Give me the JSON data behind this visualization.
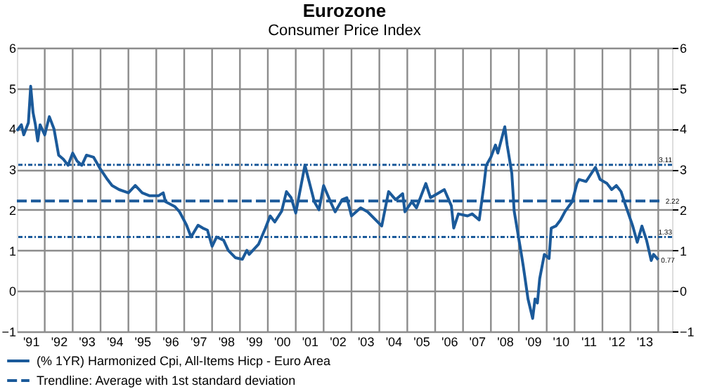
{
  "chart_data": {
    "type": "line",
    "title": "Eurozone",
    "subtitle": "Consumer Price Index",
    "xlim": [
      "1991-01",
      "2014-07"
    ],
    "xticks": [
      {
        "value": "1991-07",
        "label": "'91"
      },
      {
        "value": "1992-07",
        "label": "'92"
      },
      {
        "value": "1993-07",
        "label": "'93"
      },
      {
        "value": "1994-07",
        "label": "'94"
      },
      {
        "value": "1995-07",
        "label": "'95"
      },
      {
        "value": "1996-07",
        "label": "'96"
      },
      {
        "value": "1997-07",
        "label": "'97"
      },
      {
        "value": "1998-07",
        "label": "'98"
      },
      {
        "value": "1999-07",
        "label": "'99"
      },
      {
        "value": "2000-07",
        "label": "'00"
      },
      {
        "value": "2001-07",
        "label": "'01"
      },
      {
        "value": "2002-07",
        "label": "'02"
      },
      {
        "value": "2003-07",
        "label": "'03"
      },
      {
        "value": "2004-07",
        "label": "'04"
      },
      {
        "value": "2005-07",
        "label": "'05"
      },
      {
        "value": "2006-07",
        "label": "'06"
      },
      {
        "value": "2007-07",
        "label": "'07"
      },
      {
        "value": "2008-07",
        "label": "'08"
      },
      {
        "value": "2009-07",
        "label": "'09"
      },
      {
        "value": "2010-07",
        "label": "'10"
      },
      {
        "value": "2011-07",
        "label": "'11"
      },
      {
        "value": "2012-07",
        "label": "'12"
      },
      {
        "value": "2013-07",
        "label": "'13"
      },
      {
        "value": "1992-01",
        "label": null
      },
      {
        "value": "1993-01",
        "label": null
      },
      {
        "value": "1994-01",
        "label": null
      },
      {
        "value": "1995-01",
        "label": null
      },
      {
        "value": "1996-01",
        "label": null
      },
      {
        "value": "1997-01",
        "label": null
      },
      {
        "value": "1998-01",
        "label": null
      },
      {
        "value": "1999-01",
        "label": null
      },
      {
        "value": "2000-01",
        "label": null
      },
      {
        "value": "2001-01",
        "label": null
      },
      {
        "value": "2002-01",
        "label": null
      },
      {
        "value": "2003-01",
        "label": null
      },
      {
        "value": "2004-01",
        "label": null
      },
      {
        "value": "2005-01",
        "label": null
      },
      {
        "value": "2006-01",
        "label": null
      },
      {
        "value": "2007-01",
        "label": null
      },
      {
        "value": "2008-01",
        "label": null
      },
      {
        "value": "2009-01",
        "label": null
      },
      {
        "value": "2010-01",
        "label": null
      },
      {
        "value": "2011-01",
        "label": null
      },
      {
        "value": "2012-01",
        "label": null
      },
      {
        "value": "2013-01",
        "label": null
      },
      {
        "value": "2014-01",
        "label": null
      }
    ],
    "ylim": [
      -1,
      6
    ],
    "yticks": [
      -1,
      0,
      1,
      2,
      3,
      4,
      5,
      6
    ],
    "y2lim": [
      -1,
      6
    ],
    "y2ticks": [
      -1,
      0,
      1,
      2,
      3,
      4,
      5,
      6
    ],
    "grid": true,
    "legend": "bottom",
    "series": [
      {
        "name": "(% 1YR) Harmonized Cpi, All-Items Hicp - Euro Area",
        "color": "#1b5a9a",
        "line_style": "solid",
        "x": [
          "1991-01",
          "1991-03",
          "1991-04",
          "1991-06",
          "1991-07",
          "1991-08",
          "1991-09",
          "1991-10",
          "1991-11",
          "1992-01",
          "1992-03",
          "1992-05",
          "1992-07",
          "1992-09",
          "1992-11",
          "1993-01",
          "1993-03",
          "1993-05",
          "1993-07",
          "1993-10",
          "1994-01",
          "1994-04",
          "1994-06",
          "1994-09",
          "1995-01",
          "1995-04",
          "1995-07",
          "1995-10",
          "1996-02",
          "1996-04",
          "1996-05",
          "1996-09",
          "1996-11",
          "1997-02",
          "1997-04",
          "1997-07",
          "1997-09",
          "1997-11",
          "1998-01",
          "1998-03",
          "1998-06",
          "1998-08",
          "1998-11",
          "1999-02",
          "1999-04",
          "1999-05",
          "1999-09",
          "1999-12",
          "2000-02",
          "2000-04",
          "2000-07",
          "2000-09",
          "2000-11",
          "2001-01",
          "2001-05",
          "2001-09",
          "2001-11",
          "2002-01",
          "2002-04",
          "2002-06",
          "2002-09",
          "2002-11",
          "2003-01",
          "2003-05",
          "2003-08",
          "2004-02",
          "2004-05",
          "2004-08",
          "2004-11",
          "2004-12",
          "2005-03",
          "2005-05",
          "2005-09",
          "2005-11",
          "2006-02",
          "2006-05",
          "2006-08",
          "2006-09",
          "2006-11",
          "2007-03",
          "2007-05",
          "2007-08",
          "2007-10",
          "2007-11",
          "2008-01",
          "2008-03",
          "2008-04",
          "2008-07",
          "2008-08",
          "2008-10",
          "2008-11",
          "2009-02",
          "2009-03",
          "2009-05",
          "2009-07",
          "2009-08",
          "2009-09",
          "2009-10",
          "2009-12",
          "2010-02",
          "2010-03",
          "2010-05",
          "2010-07",
          "2010-09",
          "2010-12",
          "2011-02",
          "2011-03",
          "2011-06",
          "2011-10",
          "2011-12",
          "2012-03",
          "2012-05",
          "2012-07",
          "2012-09",
          "2012-11",
          "2013-02",
          "2013-04",
          "2013-06",
          "2013-08",
          "2013-10",
          "2013-11",
          "2014-01"
        ],
        "values": [
          3.95,
          4.1,
          3.85,
          4.15,
          5.05,
          4.4,
          4.1,
          3.7,
          4.1,
          3.85,
          4.3,
          4.0,
          3.35,
          3.25,
          3.1,
          3.4,
          3.2,
          3.1,
          3.35,
          3.3,
          3.0,
          2.75,
          2.6,
          2.5,
          2.42,
          2.6,
          2.42,
          2.35,
          2.35,
          2.42,
          2.2,
          2.08,
          1.95,
          1.62,
          1.33,
          1.62,
          1.55,
          1.5,
          1.1,
          1.33,
          1.25,
          1.0,
          0.82,
          0.78,
          1.0,
          0.9,
          1.15,
          1.55,
          1.85,
          1.7,
          1.97,
          2.45,
          2.3,
          1.92,
          3.1,
          2.2,
          2.0,
          2.6,
          2.2,
          1.95,
          2.25,
          2.3,
          1.85,
          2.05,
          1.95,
          1.6,
          2.45,
          2.25,
          2.4,
          1.95,
          2.2,
          2.05,
          2.65,
          2.3,
          2.4,
          2.5,
          2.1,
          1.55,
          1.9,
          1.85,
          1.9,
          1.75,
          2.6,
          3.1,
          3.3,
          3.6,
          3.4,
          4.05,
          3.6,
          2.9,
          1.97,
          0.93,
          0.6,
          -0.2,
          -0.68,
          -0.2,
          -0.3,
          0.3,
          0.9,
          0.8,
          1.55,
          1.6,
          1.75,
          1.97,
          2.2,
          2.65,
          2.75,
          2.7,
          3.05,
          2.75,
          2.65,
          2.5,
          2.6,
          2.45,
          2.1,
          1.6,
          1.2,
          1.6,
          1.25,
          0.75,
          0.9,
          0.77
        ]
      },
      {
        "name": "Trendline: Average with 1st standard deviation",
        "color": "#1b5a9a",
        "line_style": "dashed",
        "x": [
          "1991-01",
          "2014-03"
        ],
        "values": [
          2.22,
          2.22
        ]
      }
    ],
    "ref_lines": [
      {
        "axis": "y",
        "value": 3.11,
        "label": "3.11",
        "color": "#1b5a9a",
        "line_style": "dotted"
      },
      {
        "axis": "y",
        "value": 1.33,
        "label": "1.33",
        "color": "#1b5a9a",
        "line_style": "dotted"
      }
    ],
    "annotations": [
      {
        "text": "2.22",
        "x": "2014-03",
        "y": 2.22
      },
      {
        "text": "0.77",
        "x": "2014-01",
        "y": 0.77
      }
    ]
  }
}
